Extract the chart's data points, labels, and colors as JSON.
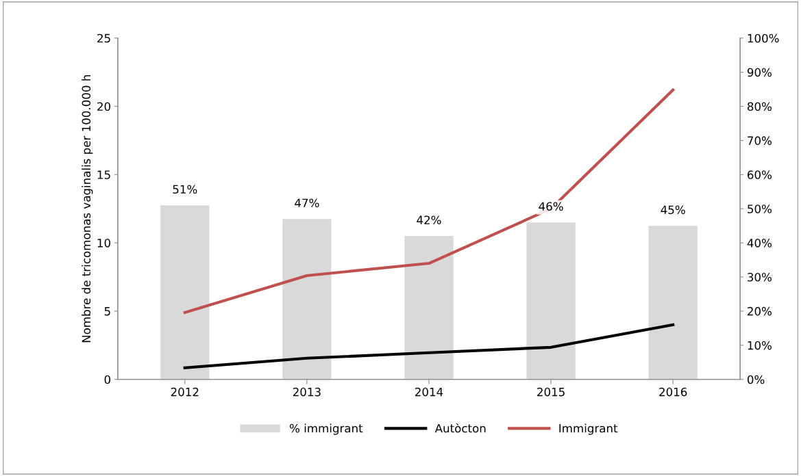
{
  "chart_data": {
    "type": "line",
    "ylabel": "Nombre de tricomonas vaginalis per 100.000 h",
    "categories": [
      "2012",
      "2013",
      "2014",
      "2015",
      "2016"
    ],
    "series": [
      {
        "name": "% immigrant",
        "type": "bar",
        "axis": "y2",
        "color": "#d9d9d9",
        "values": [
          51,
          47,
          42,
          46,
          45
        ],
        "value_labels": [
          "51%",
          "47%",
          "42%",
          "46%",
          "45%"
        ]
      },
      {
        "name": "Autòcton",
        "color": "#000000",
        "values": [
          0.85,
          1.55,
          1.95,
          2.35,
          4.0
        ]
      },
      {
        "name": "Immigrant",
        "color": "#c0504d",
        "values": [
          4.9,
          7.6,
          8.5,
          12.5,
          21.2
        ]
      }
    ],
    "ylim": [
      0,
      25
    ],
    "yticks": [
      0,
      5,
      10,
      15,
      20,
      25
    ],
    "y2lim": [
      0,
      100
    ],
    "y2ticks": [
      {
        "value": 0,
        "label": "0%"
      },
      {
        "value": 10,
        "label": "10%"
      },
      {
        "value": 20,
        "label": "20%"
      },
      {
        "value": 30,
        "label": "30%"
      },
      {
        "value": 40,
        "label": "40%"
      },
      {
        "value": 50,
        "label": "50%"
      },
      {
        "value": 60,
        "label": "60%"
      },
      {
        "value": 70,
        "label": "70%"
      },
      {
        "value": 80,
        "label": "80%"
      },
      {
        "value": 90,
        "label": "90%"
      },
      {
        "value": 100,
        "label": "100%"
      }
    ],
    "legend": "bottom",
    "grid": false,
    "marker": "none",
    "line_style": "solid"
  }
}
